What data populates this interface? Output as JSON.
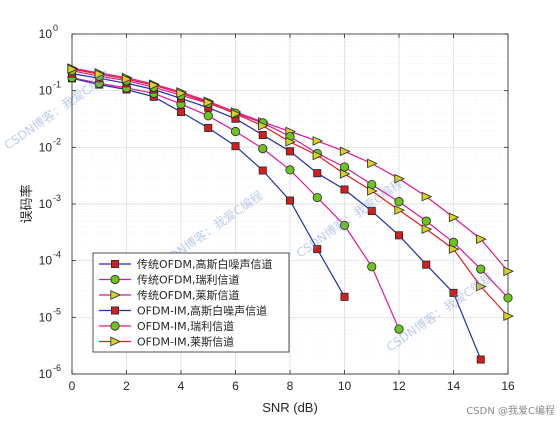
{
  "chart_data": {
    "type": "line",
    "yscale": "log",
    "xlabel": "SNR (dB)",
    "ylabel": "误码率",
    "xlim": [
      0,
      16
    ],
    "ylim": [
      1e-06,
      1
    ],
    "xticks": [
      0,
      2,
      4,
      6,
      8,
      10,
      12,
      14,
      16
    ],
    "yticks": [
      {
        "value": 1e-06,
        "exp": "-6"
      },
      {
        "value": 1e-05,
        "exp": "-5"
      },
      {
        "value": 0.0001,
        "exp": "-4"
      },
      {
        "value": 0.001,
        "exp": "-3"
      },
      {
        "value": 0.01,
        "exp": "-2"
      },
      {
        "value": 0.1,
        "exp": "-1"
      },
      {
        "value": 1,
        "exp": "0"
      }
    ],
    "ytick_base": "10",
    "grid": true,
    "legend_position": "bottom-left",
    "series": [
      {
        "name": "传统OFDM,高斯白噪声信道",
        "color": "#1f2fa8",
        "marker": "square",
        "marker_fill": "#d11f1f",
        "x": [
          0,
          1,
          2,
          3,
          4,
          5,
          6,
          7,
          8,
          9,
          10
        ],
        "y": [
          0.165,
          0.128,
          0.105,
          0.078,
          0.042,
          0.022,
          0.0105,
          0.0039,
          0.00115,
          0.00016,
          2.3e-05
        ]
      },
      {
        "name": "传统OFDM,瑞利信道",
        "color": "#e0169b",
        "marker": "circle",
        "marker_fill": "#6cc51e",
        "x": [
          0,
          1,
          2,
          3,
          4,
          5,
          6,
          7,
          8,
          9,
          10,
          11,
          12
        ],
        "y": [
          0.17,
          0.135,
          0.112,
          0.09,
          0.058,
          0.036,
          0.019,
          0.0095,
          0.004,
          0.0013,
          0.00042,
          7.8e-05,
          6.2e-06
        ]
      },
      {
        "name": "传统OFDM,莱斯信道",
        "color": "#e0169b",
        "marker": "triangle-right",
        "marker_fill": "#d7d21f",
        "x": [
          0,
          1,
          2,
          3,
          4,
          5,
          6,
          7,
          8,
          9,
          10,
          11,
          12,
          13,
          14,
          15,
          16
        ],
        "y": [
          0.25,
          0.205,
          0.17,
          0.13,
          0.095,
          0.065,
          0.042,
          0.028,
          0.019,
          0.013,
          0.0085,
          0.0052,
          0.0028,
          0.00135,
          0.00058,
          0.00024,
          6.5e-05
        ]
      },
      {
        "name": "OFDM-IM,高斯白噪声信道",
        "color": "#1f2fa8",
        "marker": "square",
        "marker_fill": "#d11f1f",
        "x": [
          0,
          1,
          2,
          3,
          4,
          5,
          6,
          7,
          8,
          9,
          10,
          11,
          12,
          13,
          14,
          15
        ],
        "y": [
          0.2,
          0.165,
          0.135,
          0.105,
          0.073,
          0.05,
          0.032,
          0.0165,
          0.0085,
          0.0035,
          0.0018,
          0.00075,
          0.00028,
          8.5e-05,
          2.7e-05,
          1.8e-06
        ]
      },
      {
        "name": "OFDM-IM,瑞利信道",
        "color": "#e0169b",
        "marker": "circle",
        "marker_fill": "#6cc51e",
        "x": [
          0,
          1,
          2,
          3,
          4,
          5,
          6,
          7,
          8,
          9,
          10,
          11,
          12,
          13,
          14,
          15,
          16
        ],
        "y": [
          0.225,
          0.18,
          0.15,
          0.115,
          0.083,
          0.06,
          0.04,
          0.027,
          0.0155,
          0.0078,
          0.0045,
          0.0022,
          0.0011,
          0.0005,
          0.00021,
          7.1e-05,
          2.2e-05
        ]
      },
      {
        "name": "OFDM-IM,莱斯信道",
        "color": "#e21e1e",
        "marker": "triangle-right",
        "marker_fill": "#d7d21f",
        "x": [
          0,
          1,
          2,
          3,
          4,
          5,
          6,
          7,
          8,
          9,
          10,
          11,
          12,
          13,
          14,
          15,
          16
        ],
        "y": [
          0.24,
          0.195,
          0.16,
          0.125,
          0.09,
          0.062,
          0.039,
          0.024,
          0.0125,
          0.0072,
          0.0034,
          0.0017,
          0.00078,
          0.00036,
          0.00016,
          3.5e-05,
          1.05e-05
        ]
      }
    ]
  },
  "watermark": {
    "lines": [
      "CSDN博客：我爱C编程",
      "CSDN博客：我爱C编程",
      "CSDN博客：我爱C编程",
      "CSDN博客：我爱C编程"
    ],
    "credit": "CSDN @我爱C编程"
  }
}
